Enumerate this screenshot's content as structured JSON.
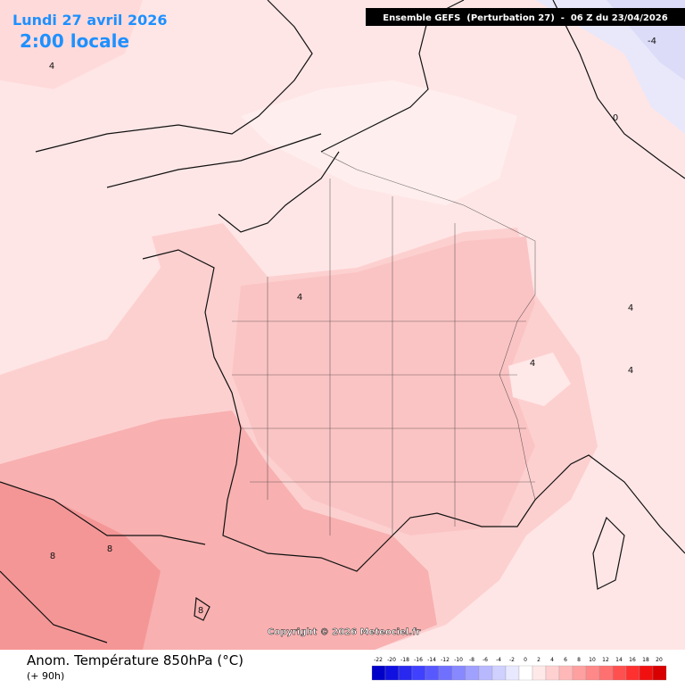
{
  "header": {
    "date": "Lundi 27 avril 2026",
    "time": "2:00 locale",
    "run": "Ensemble GEFS  (Perturbation 27)  -  06 Z du 23/04/2026"
  },
  "map": {
    "contour_labels": [
      "4",
      "4",
      "4",
      "4",
      "4",
      "8",
      "8",
      "8",
      "0",
      "-4"
    ]
  },
  "copyright": "Copyright © 2026 Meteociel.fr",
  "footer": {
    "title": "Anom. Température 850hPa (°C)",
    "lead": "(+ 90h)"
  },
  "legend": {
    "ticks": [
      -22,
      -20,
      -18,
      -16,
      -14,
      -12,
      -10,
      -8,
      -6,
      -4,
      -2,
      0,
      2,
      4,
      6,
      8,
      10,
      12,
      14,
      16,
      18,
      20
    ],
    "colors": [
      "#0000c8",
      "#1010e0",
      "#2828f0",
      "#4040ff",
      "#5858ff",
      "#7070ff",
      "#8888ff",
      "#a0a0ff",
      "#b8b8ff",
      "#d0d0ff",
      "#e8e8ff",
      "#ffffff",
      "#ffe8e8",
      "#ffd0d0",
      "#ffb8b8",
      "#ffa0a0",
      "#ff8888",
      "#ff7070",
      "#ff5050",
      "#ff3030",
      "#f01010",
      "#d80000"
    ]
  }
}
